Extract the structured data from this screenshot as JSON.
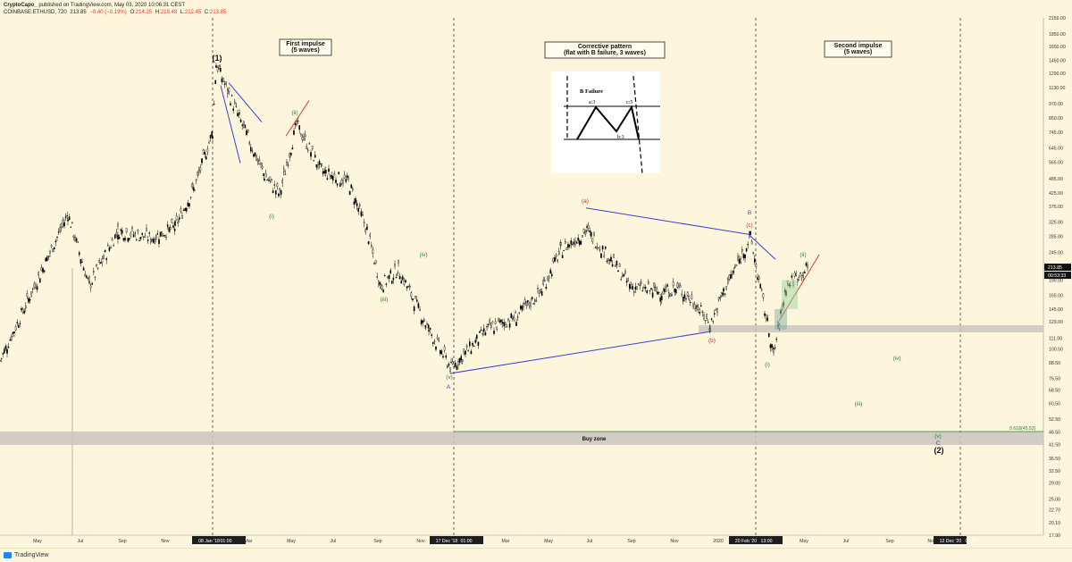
{
  "header": {
    "author": "CryptoCapo_",
    "published": "published on TradingView.com, May 03, 2020 10:06:31 CEST",
    "symbol": "COINBASE:ETHUSD, 720",
    "price": "213.85",
    "change": "−0.40 (−0.19%)",
    "o_label": "O:",
    "o_val": "214.25",
    "h_label": "H:",
    "h_val": "219.48",
    "l_label": "L:",
    "l_val": "212.45",
    "c_label": "C:",
    "c_val": "213.85"
  },
  "footer": {
    "brand": "TradingView"
  },
  "colors": {
    "background": "#fdf6dc",
    "candles": "#000000",
    "wave_green": "#2e7d32",
    "wave_red": "#c62828",
    "trendline": "#3f3fd0",
    "zone": "#c9c6bd"
  },
  "chart_data": {
    "type": "candlestick",
    "symbol": "COINBASE:ETHUSD",
    "timeframe": "720",
    "y_scale": "log",
    "y_ticks": [
      "2150.00",
      "1850.00",
      "1650.00",
      "1450.00",
      "1290.00",
      "1130.00",
      "970.00",
      "850.00",
      "745.00",
      "645.00",
      "565.00",
      "485.00",
      "425.00",
      "375.00",
      "325.00",
      "285.00",
      "245.00",
      "213.85",
      "190.00",
      "165.00",
      "145.00",
      "129.00",
      "111.00",
      "100.50",
      "88.50",
      "76.50",
      "68.50",
      "60.50",
      "52.50",
      "46.50",
      "41.50",
      "36.50",
      "32.50",
      "29.00",
      "25.00",
      "22.70",
      "20.10",
      "17.90"
    ],
    "last_price_label": "213.85",
    "countdown_label": "00:53:33",
    "x_ticks": [
      "May",
      "Jul",
      "Sep",
      "Nov",
      "08 Jan '18",
      "01:00",
      "Mar",
      "May",
      "Jul",
      "Sep",
      "Nov",
      "17 Dec '18",
      "01:00",
      "Mar",
      "May",
      "Jul",
      "Sep",
      "Nov",
      "2020",
      "20 Feb '20",
      "13:00",
      "May",
      "Jul",
      "Sep",
      "Nov",
      "12 Dec '20",
      "01:00"
    ],
    "price_path": [
      [
        "May 17",
        90
      ],
      [
        "Jun 17",
        350
      ],
      [
        "Jul 17",
        180
      ],
      [
        "Aug 17",
        300
      ],
      [
        "Sep 17",
        280
      ],
      [
        "Oct 17",
        310
      ],
      [
        "Nov 17",
        450
      ],
      [
        "Dec 17",
        750
      ],
      [
        "08 Jan '18",
        1400
      ],
      [
        "Feb 18",
        850
      ],
      [
        "Mar 18",
        500
      ],
      [
        "Apr 18",
        420
      ],
      [
        "May 18",
        800
      ],
      [
        "Jun 18",
        520
      ],
      [
        "Jul 18",
        470
      ],
      [
        "Aug 18",
        300
      ],
      [
        "Sep 18",
        180
      ],
      [
        "Oct 18",
        210
      ],
      [
        "Nov 18",
        120
      ],
      [
        "17 Dec '18",
        84
      ],
      [
        "Jan 19",
        120
      ],
      [
        "Mar 19",
        135
      ],
      [
        "Apr 19",
        170
      ],
      [
        "May 19",
        250
      ],
      [
        "Jun 19",
        300
      ],
      [
        "Jul 19",
        230
      ],
      [
        "Aug 19",
        180
      ],
      [
        "Sep 19",
        170
      ],
      [
        "Oct 19",
        175
      ],
      [
        "Nov 19",
        150
      ],
      [
        "Dec 19",
        125
      ],
      [
        "Jan 20",
        170
      ],
      [
        "20 Feb '20",
        282
      ],
      [
        "Mar 20",
        95
      ],
      [
        "Apr 20",
        180
      ],
      [
        "May 20",
        213.85
      ]
    ],
    "labels": [
      {
        "text": "(1)",
        "color": "#111111",
        "bold": true
      },
      {
        "text": "(ii)",
        "color": "#2e7d32"
      },
      {
        "text": "(i)",
        "color": "#2e7d32"
      },
      {
        "text": "(iii)",
        "color": "#2e7d32"
      },
      {
        "text": "(iv)",
        "color": "#2e7d32"
      },
      {
        "text": "(v)",
        "color": "#2e7d32"
      },
      {
        "text": "A",
        "color": "#7b2f9e"
      },
      {
        "text": "(a)",
        "color": "#c62828"
      },
      {
        "text": "(b)",
        "color": "#c62828"
      },
      {
        "text": "(c)",
        "color": "#c62828"
      },
      {
        "text": "B",
        "color": "#7b2f9e"
      },
      {
        "text": "(ii)",
        "color": "#2e7d32"
      },
      {
        "text": "(i)",
        "color": "#2e7d32"
      },
      {
        "text": "(iv)",
        "color": "#2e7d32"
      },
      {
        "text": "(iii)",
        "color": "#2e7d32"
      },
      {
        "text": "(v)",
        "color": "#2e7d32"
      },
      {
        "text": "C",
        "color": "#7b2f9e"
      },
      {
        "text": "(2)",
        "color": "#111111",
        "bold": true
      }
    ],
    "boxes": [
      {
        "lines": [
          "First impulse",
          "(5 waves)"
        ]
      },
      {
        "lines": [
          "Corrective pattern",
          "(flat with B failure, 3 waves)"
        ]
      },
      {
        "lines": [
          "Second impulse",
          "(5 waves)"
        ]
      }
    ],
    "buy_zone": {
      "label": "Buy zone",
      "fib_label": "0.618(45.53)"
    },
    "inset": {
      "title": "B Failure",
      "a": "a:3",
      "b": "b:3",
      "c": "c:5"
    }
  }
}
